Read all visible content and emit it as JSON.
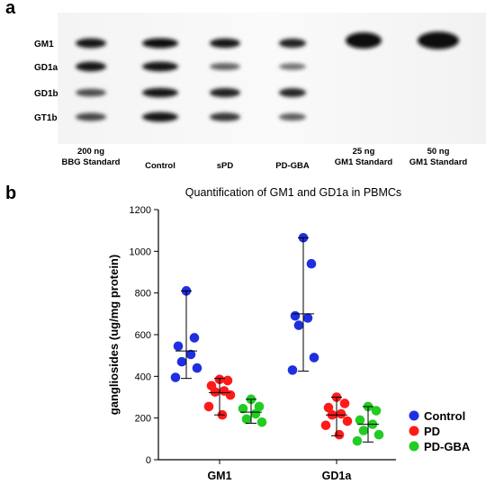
{
  "panel_a": {
    "letter": "a",
    "band_labels": [
      "GM1",
      "GD1a",
      "GD1b",
      "GT1b"
    ],
    "lanes": [
      {
        "label_line1": "200 ng",
        "label_line2": "BBG Standard"
      },
      {
        "label_line1": "",
        "label_line2": "Control"
      },
      {
        "label_line1": "",
        "label_line2": "sPD"
      },
      {
        "label_line1": "",
        "label_line2": "PD-GBA"
      },
      {
        "label_line1": "25 ng",
        "label_line2": "GM1 Standard"
      },
      {
        "label_line1": "50 ng",
        "label_line2": "GM1 Standard"
      }
    ]
  },
  "panel_b": {
    "letter": "b"
  },
  "chart_data": {
    "type": "scatter",
    "title": "Quantification of GM1 and GD1a in PBMCs",
    "xlabel": "",
    "ylabel": "gangliosides (ug/mg protein)",
    "categories": [
      "GM1",
      "GD1a"
    ],
    "ylim": [
      0,
      1200
    ],
    "yticks": [
      "0",
      "200",
      "400",
      "600",
      "800",
      "1000",
      "1200"
    ],
    "legend_position": "right",
    "series": [
      {
        "name": "Control",
        "color": "#1f2fe0",
        "points": [
          {
            "category": "GM1",
            "values": [
              810,
              585,
              545,
              505,
              470,
              440,
              395
            ],
            "mean": 522,
            "range": [
              390,
              810
            ]
          },
          {
            "category": "GD1a",
            "values": [
              1065,
              940,
              690,
              680,
              645,
              490,
              430
            ],
            "mean": 700,
            "range": [
              425,
              1065
            ]
          }
        ]
      },
      {
        "name": "PD",
        "color": "#ff1a1a",
        "points": [
          {
            "category": "GM1",
            "values": [
              385,
              380,
              355,
              330,
              325,
              310,
              255,
              215
            ],
            "mean": 322,
            "range": [
              215,
              390
            ]
          },
          {
            "category": "GD1a",
            "values": [
              300,
              270,
              250,
              220,
              215,
              185,
              165,
              120
            ],
            "mean": 215,
            "range": [
              115,
              300
            ]
          }
        ]
      },
      {
        "name": "PD-GBA",
        "color": "#22cc22",
        "points": [
          {
            "category": "GM1",
            "values": [
              290,
              255,
              245,
              220,
              195,
              180
            ],
            "mean": 228,
            "range": [
              175,
              290
            ]
          },
          {
            "category": "GD1a",
            "values": [
              255,
              235,
              190,
              170,
              140,
              120,
              90
            ],
            "mean": 170,
            "range": [
              85,
              255
            ]
          }
        ]
      }
    ]
  }
}
